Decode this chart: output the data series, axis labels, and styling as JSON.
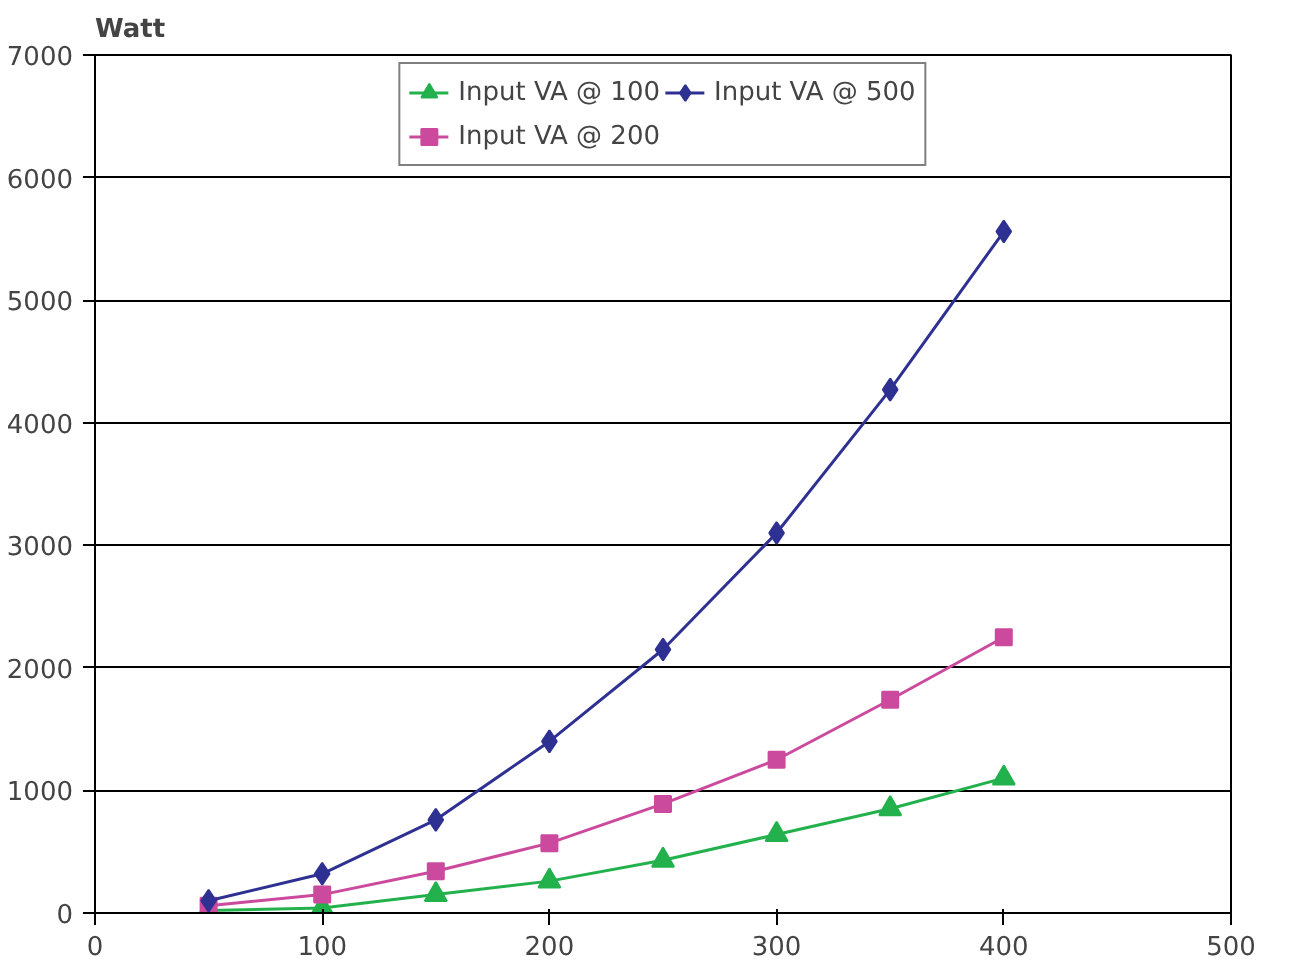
{
  "chart_data": {
    "type": "line",
    "ylabel": "Watt",
    "x": [
      50,
      100,
      150,
      200,
      250,
      300,
      350,
      400
    ],
    "xlim": [
      0,
      500
    ],
    "xticks": [
      0,
      100,
      200,
      300,
      400,
      500
    ],
    "ylim": [
      0,
      7000
    ],
    "yticks": [
      0,
      1000,
      2000,
      3000,
      4000,
      5000,
      6000,
      7000
    ],
    "grid": "y",
    "legend": "top",
    "line_style": "solid",
    "series": [
      {
        "name": "Input VA @ 100",
        "color": "#22b14c",
        "marker": "triangle",
        "values": [
          20,
          40,
          150,
          260,
          430,
          640,
          850,
          1100
        ]
      },
      {
        "name": "Input VA @ 200",
        "color": "#cc4a9e",
        "marker": "square",
        "values": [
          60,
          150,
          340,
          570,
          890,
          1250,
          1740,
          2250
        ]
      },
      {
        "name": "Input VA @ 500",
        "color": "#2e3192",
        "marker": "diamond",
        "values": [
          100,
          320,
          760,
          1400,
          2150,
          3100,
          4270,
          5560
        ]
      }
    ]
  }
}
